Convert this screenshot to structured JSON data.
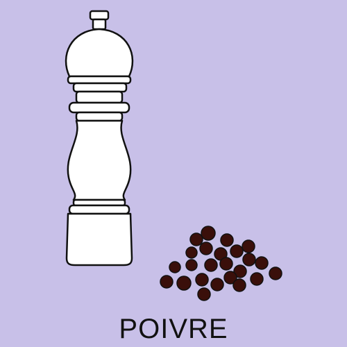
{
  "card": {
    "word": "POIVRE",
    "background_color": "#c8c0e8",
    "ink_color": "#111111",
    "mill_fill": "#ffffff",
    "peppercorn_color": "#3a0f0a"
  },
  "illustration": {
    "items": [
      {
        "name": "pepper-mill-icon"
      },
      {
        "name": "peppercorns-icon"
      }
    ]
  }
}
